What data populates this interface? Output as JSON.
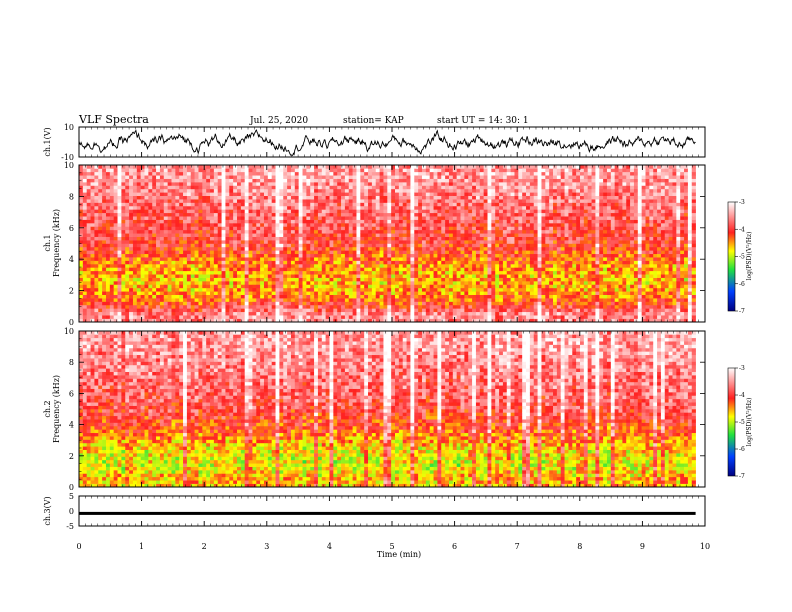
{
  "header": {
    "title": "VLF Spectra",
    "date": "Jul. 25, 2020",
    "station": "station= KAP",
    "start_ut": "start UT =  14: 30: 1"
  },
  "colors": {
    "spectrogram_low": "#000080",
    "spectrogram_mid_low": "#0060ff",
    "spectrogram_mid": "#20e040",
    "spectrogram_mid_high": "#ffff00",
    "spectrogram_high": "#ff2020",
    "spectrogram_top": "#ffffff"
  },
  "chart_data": [
    {
      "type": "line",
      "panel": "ch1-waveform",
      "ylabel": "ch.1(V)",
      "ylim": [
        -10,
        10
      ],
      "yticks": [
        "10",
        "-10"
      ],
      "xlim": [
        0,
        10
      ],
      "description_values": {
        "mean": 0,
        "typical_amplitude": 5
      }
    },
    {
      "type": "heatmap",
      "panel": "ch1-spectrogram",
      "ylabel": "ch.1 Frequency (kHz)",
      "ylim": [
        0,
        10
      ],
      "yticks": [
        "0",
        "2",
        "4",
        "6",
        "8",
        "10"
      ],
      "xlim": [
        0,
        9.85
      ],
      "colorbar": {
        "label": "log(PSD)(V²/Hz)",
        "range": [
          -7,
          -3
        ],
        "ticks": [
          "-3",
          "-4",
          "-5",
          "-6",
          "-7"
        ]
      },
      "level_profile_by_freq_khz": [
        {
          "f": 0.5,
          "log_psd": -3.6
        },
        {
          "f": 1.5,
          "log_psd": -4.4
        },
        {
          "f": 2.5,
          "log_psd": -4.6
        },
        {
          "f": 3.5,
          "log_psd": -4.5
        },
        {
          "f": 5,
          "log_psd": -4.0
        },
        {
          "f": 7,
          "log_psd": -3.8
        },
        {
          "f": 9,
          "log_psd": -3.5
        }
      ]
    },
    {
      "type": "heatmap",
      "panel": "ch2-spectrogram",
      "ylabel": "ch.2 Frequency (kHz)",
      "ylim": [
        0,
        10
      ],
      "yticks": [
        "0",
        "2",
        "4",
        "6",
        "8",
        "10"
      ],
      "xlim": [
        0,
        9.85
      ],
      "colorbar": {
        "label": "log(PSD)(V²/Hz)",
        "range": [
          -7,
          -3
        ],
        "ticks": [
          "-3",
          "-4",
          "-5",
          "-6",
          "-7"
        ]
      },
      "level_profile_by_freq_khz": [
        {
          "f": 0.5,
          "log_psd": -4.6
        },
        {
          "f": 1.5,
          "log_psd": -4.9
        },
        {
          "f": 2.5,
          "log_psd": -4.7
        },
        {
          "f": 3.5,
          "log_psd": -4.3
        },
        {
          "f": 5,
          "log_psd": -3.9
        },
        {
          "f": 7,
          "log_psd": -3.7
        },
        {
          "f": 9,
          "log_psd": -3.5
        }
      ]
    },
    {
      "type": "line",
      "panel": "ch3-waveform",
      "ylabel": "ch.3(V)",
      "ylim": [
        -5,
        5
      ],
      "yticks": [
        "5",
        "0",
        "-5"
      ],
      "xlim": [
        0,
        9.85
      ],
      "description_values": {
        "mean": -0.8,
        "band_halfwidth": 0.5
      }
    }
  ],
  "xaxis": {
    "label": "Time (min)",
    "ticks": [
      "0",
      "1",
      "2",
      "3",
      "4",
      "5",
      "6",
      "7",
      "8",
      "9",
      "10"
    ],
    "range": [
      0,
      10
    ]
  }
}
